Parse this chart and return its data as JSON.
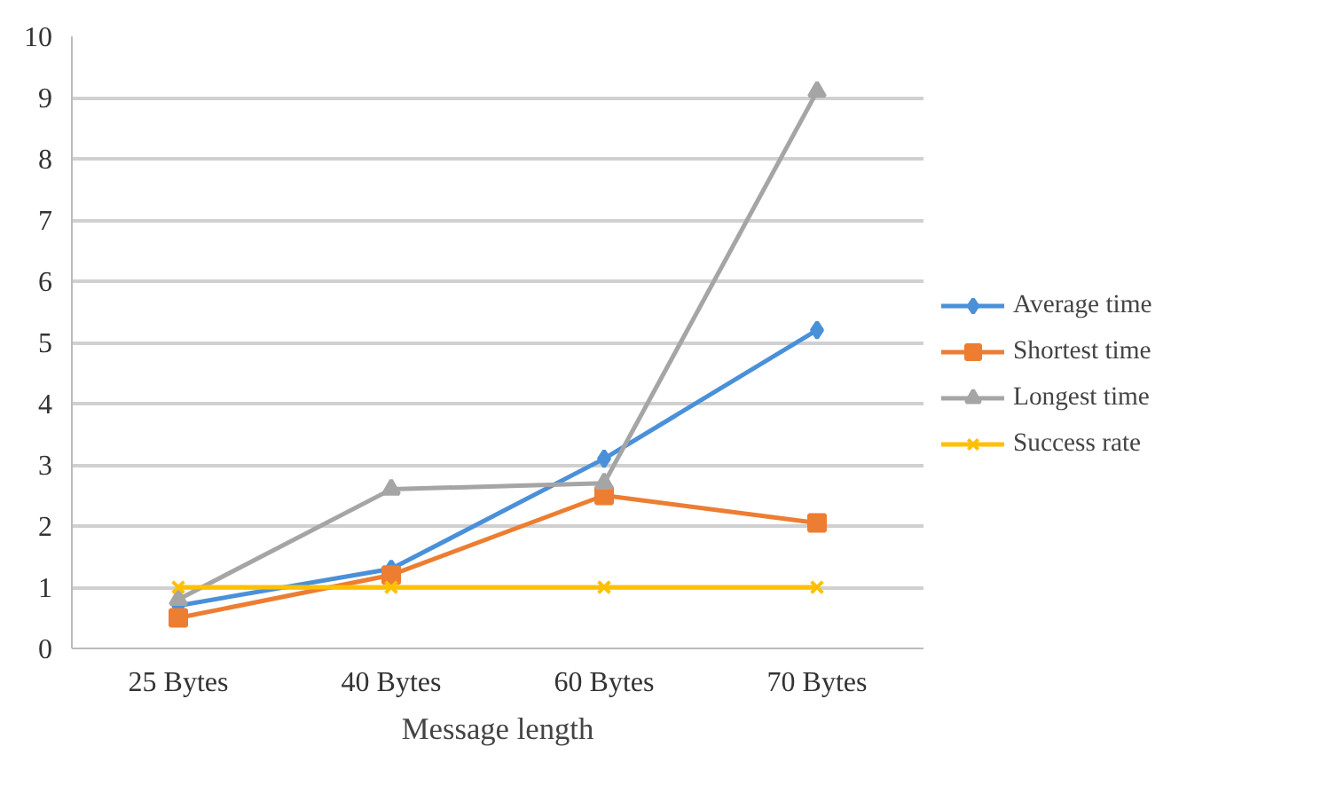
{
  "chart_data": {
    "type": "line",
    "xlabel": "Message length",
    "categories": [
      "25 Bytes",
      "40 Bytes",
      "60 Bytes",
      "70 Bytes"
    ],
    "series": [
      {
        "name": "Average time",
        "color": "#4a90d9",
        "marker": "diamond",
        "values": [
          0.7,
          1.3,
          3.1,
          5.2
        ]
      },
      {
        "name": "Shortest time",
        "color": "#ed7d31",
        "marker": "square",
        "values": [
          0.5,
          1.2,
          2.5,
          2.05
        ]
      },
      {
        "name": "Longest time",
        "color": "#a5a5a5",
        "marker": "triangle",
        "values": [
          0.8,
          2.6,
          2.7,
          9.1
        ]
      },
      {
        "name": "Success rate",
        "color": "#ffc000",
        "marker": "cross",
        "values": [
          1,
          1,
          1,
          1
        ]
      }
    ],
    "ylim": [
      0,
      10
    ],
    "yticks": [
      0,
      1,
      2,
      3,
      4,
      5,
      6,
      7,
      8,
      9,
      10
    ],
    "grid": "y",
    "legend": "right",
    "line_style": "solid"
  }
}
